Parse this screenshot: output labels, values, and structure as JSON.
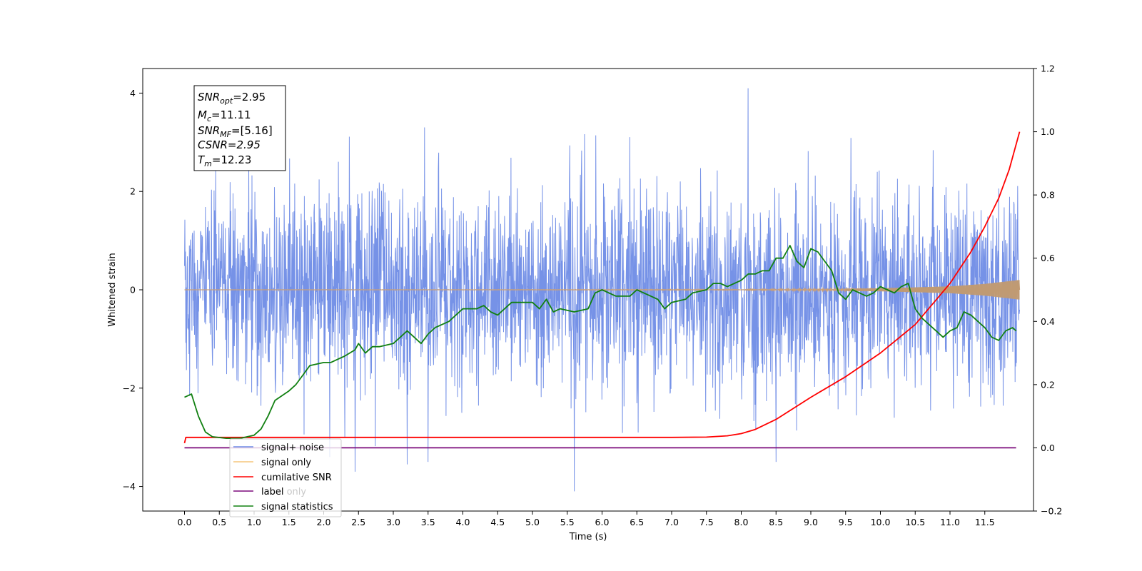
{
  "chart_data": {
    "type": "line",
    "xlabel": "Time (s)",
    "ylabel": "Whitened strain",
    "xlim": [
      -0.6,
      12.2
    ],
    "ylim_left": [
      -4.5,
      4.5
    ],
    "ylim_right": [
      -0.2,
      1.2
    ],
    "x_ticks": [
      "0.0",
      "0.5",
      "1.0",
      "1.5",
      "2.0",
      "2.5",
      "3.0",
      "3.5",
      "4.0",
      "4.5",
      "5.0",
      "5.5",
      "6.0",
      "6.5",
      "7.0",
      "7.5",
      "8.0",
      "8.5",
      "9.0",
      "9.5",
      "10.0",
      "10.5",
      "11.0",
      "11.5"
    ],
    "y_ticks_left": [
      "4",
      "2",
      "0",
      "−2",
      "−4"
    ],
    "y_ticks_right": [
      "1.2",
      "1.0",
      "0.8",
      "0.6",
      "0.4",
      "0.2",
      "0.0",
      "−0.2"
    ],
    "grid": false,
    "legend_position": "lower-left",
    "annotation": {
      "snr_opt": {
        "base": "SNR",
        "sub": "opt",
        "value": "=2.95"
      },
      "mc": {
        "base": "M",
        "sub": "c",
        "value": "=11.11"
      },
      "snr_mf": {
        "base": "SNR",
        "sub": "MF",
        "value": "=[5.16]"
      },
      "csnr": {
        "text": "CSNR=2.95"
      },
      "tm": {
        "base": "T",
        "sub": "m",
        "value": "=12.23"
      }
    },
    "series": [
      {
        "name": "signal+ noise",
        "color": "#6f8ce6",
        "axis": "left",
        "kind": "noise",
        "x_range": [
          0.0,
          12.0
        ],
        "amplitude_typical": 1.0,
        "amplitude_peaks": [
          3.5,
          -3.6
        ],
        "notable_spikes": [
          {
            "x": 8.1,
            "y": 4.1
          },
          {
            "x": 5.6,
            "y": -4.1
          },
          {
            "x": 8.5,
            "y": -3.5
          },
          {
            "x": 2.45,
            "y": -3.7
          },
          {
            "x": 3.2,
            "y": -3.55
          },
          {
            "x": 3.5,
            "y": -3.5
          }
        ]
      },
      {
        "name": "signal only",
        "color": "#e8b87a",
        "axis": "left",
        "kind": "chirp",
        "x_range": [
          0.0,
          12.0
        ],
        "envelope": [
          {
            "x": 0.0,
            "y": 0.0
          },
          {
            "x": 8.0,
            "y": 0.01
          },
          {
            "x": 10.0,
            "y": 0.03
          },
          {
            "x": 11.0,
            "y": 0.07
          },
          {
            "x": 11.5,
            "y": 0.12
          },
          {
            "x": 12.0,
            "y": 0.2
          }
        ]
      },
      {
        "name": "cumilative SNR",
        "color": "#ff0000",
        "axis": "right",
        "x": [
          0.0,
          0.02,
          1.0,
          2.0,
          3.0,
          4.0,
          5.0,
          6.0,
          7.0,
          7.5,
          7.8,
          8.0,
          8.2,
          8.5,
          9.0,
          9.5,
          10.0,
          10.5,
          11.0,
          11.3,
          11.5,
          11.7,
          11.85,
          12.0
        ],
        "values": [
          0.015,
          0.033,
          0.033,
          0.033,
          0.033,
          0.033,
          0.033,
          0.033,
          0.033,
          0.034,
          0.038,
          0.045,
          0.058,
          0.09,
          0.16,
          0.225,
          0.3,
          0.39,
          0.52,
          0.62,
          0.7,
          0.79,
          0.88,
          1.0
        ]
      },
      {
        "name": "label",
        "color": "#7b0a7b",
        "axis": "right",
        "x": [
          0.0,
          11.95
        ],
        "values": [
          0.0,
          0.0
        ]
      },
      {
        "name": "signal statistics",
        "color": "#118011",
        "axis": "right",
        "x": [
          0.0,
          0.1,
          0.2,
          0.3,
          0.4,
          0.6,
          0.8,
          1.0,
          1.1,
          1.2,
          1.3,
          1.5,
          1.6,
          1.7,
          1.8,
          2.0,
          2.1,
          2.2,
          2.3,
          2.45,
          2.5,
          2.6,
          2.7,
          2.8,
          3.0,
          3.1,
          3.2,
          3.3,
          3.4,
          3.5,
          3.6,
          3.8,
          4.0,
          4.2,
          4.3,
          4.4,
          4.5,
          4.6,
          4.7,
          4.8,
          5.0,
          5.1,
          5.2,
          5.3,
          5.4,
          5.6,
          5.8,
          5.9,
          6.0,
          6.2,
          6.4,
          6.5,
          6.6,
          6.8,
          6.9,
          7.0,
          7.2,
          7.3,
          7.5,
          7.6,
          7.7,
          7.8,
          8.0,
          8.1,
          8.2,
          8.3,
          8.4,
          8.5,
          8.6,
          8.7,
          8.8,
          8.9,
          9.0,
          9.1,
          9.2,
          9.3,
          9.4,
          9.5,
          9.6,
          9.7,
          9.8,
          9.9,
          10.0,
          10.1,
          10.2,
          10.3,
          10.4,
          10.5,
          10.6,
          10.8,
          10.9,
          11.0,
          11.1,
          11.2,
          11.3,
          11.5,
          11.6,
          11.7,
          11.8,
          11.9,
          11.95
        ],
        "values": [
          0.16,
          0.17,
          0.1,
          0.05,
          0.035,
          0.03,
          0.03,
          0.04,
          0.06,
          0.1,
          0.15,
          0.18,
          0.2,
          0.23,
          0.26,
          0.27,
          0.27,
          0.28,
          0.29,
          0.31,
          0.33,
          0.3,
          0.32,
          0.32,
          0.33,
          0.35,
          0.37,
          0.35,
          0.33,
          0.36,
          0.38,
          0.4,
          0.44,
          0.44,
          0.45,
          0.43,
          0.42,
          0.44,
          0.46,
          0.46,
          0.46,
          0.44,
          0.47,
          0.43,
          0.44,
          0.43,
          0.44,
          0.49,
          0.5,
          0.48,
          0.48,
          0.5,
          0.49,
          0.47,
          0.44,
          0.46,
          0.47,
          0.49,
          0.5,
          0.52,
          0.52,
          0.51,
          0.53,
          0.55,
          0.55,
          0.56,
          0.56,
          0.6,
          0.6,
          0.64,
          0.59,
          0.57,
          0.63,
          0.62,
          0.59,
          0.56,
          0.49,
          0.47,
          0.5,
          0.49,
          0.48,
          0.49,
          0.51,
          0.5,
          0.49,
          0.51,
          0.52,
          0.44,
          0.41,
          0.37,
          0.35,
          0.37,
          0.38,
          0.43,
          0.42,
          0.38,
          0.35,
          0.34,
          0.37,
          0.38,
          0.37
        ]
      },
      {
        "name": "signal only",
        "color": "#cfcfcf",
        "axis": "right",
        "legend_only": true
      }
    ],
    "legend": [
      "signal+ noise",
      "signal only",
      "cumilative SNR",
      "label",
      "label only",
      "signal statistics"
    ]
  }
}
